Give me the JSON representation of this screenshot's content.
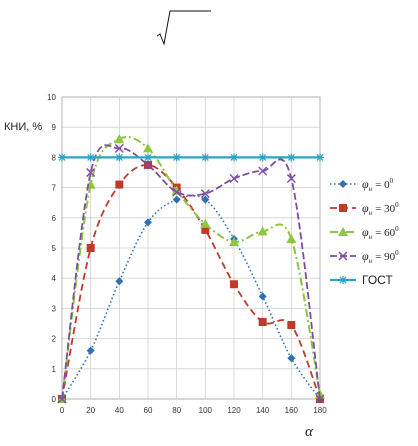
{
  "chart_data": {
    "type": "line",
    "ylabel": "КНИ, %",
    "xlabel": "α",
    "xlim": [
      0,
      180
    ],
    "ylim": [
      0,
      10
    ],
    "x_ticks": [
      "0",
      "20",
      "40",
      "60",
      "80",
      "100",
      "120",
      "140",
      "160",
      "180"
    ],
    "y_ticks": [
      "0",
      "1",
      "2",
      "3",
      "4",
      "5",
      "6",
      "7",
      "8",
      "9",
      "10"
    ],
    "grid": true,
    "legend_position": "right",
    "series": [
      {
        "name": "φн = 0°",
        "label_symbol": "φ",
        "label_sub": "н",
        "label_value": "= 0",
        "label_sup": "0",
        "color": "#2f6fb5",
        "marker": "diamond",
        "dash": "dotted",
        "x": [
          0,
          20,
          40,
          60,
          80,
          100,
          120,
          140,
          160,
          180
        ],
        "values": [
          0,
          1.6,
          3.9,
          5.85,
          6.6,
          6.6,
          5.3,
          3.4,
          1.35,
          0
        ]
      },
      {
        "name": "φн = 30°",
        "label_symbol": "φ",
        "label_sub": "н",
        "label_value": "= 30",
        "label_sup": "0",
        "color": "#c0392b",
        "marker": "square",
        "dash": "dashed",
        "x": [
          0,
          20,
          40,
          60,
          80,
          100,
          120,
          140,
          160,
          180
        ],
        "values": [
          0,
          5.0,
          7.1,
          7.75,
          7.0,
          5.6,
          3.8,
          2.55,
          2.45,
          0
        ]
      },
      {
        "name": "φн = 60°",
        "label_symbol": "φ",
        "label_sub": "н",
        "label_value": "= 60",
        "label_sup": "0",
        "color": "#8dc63f",
        "marker": "triangle",
        "dash": "dashdot",
        "x": [
          0,
          20,
          40,
          60,
          80,
          100,
          120,
          140,
          160,
          180
        ],
        "values": [
          0,
          7.1,
          8.6,
          8.3,
          6.9,
          5.8,
          5.2,
          5.55,
          5.3,
          0.15
        ]
      },
      {
        "name": "φн = 90°",
        "label_symbol": "φ",
        "label_sub": "н",
        "label_value": "= 90",
        "label_sup": "0",
        "color": "#7b4ea3",
        "marker": "x",
        "dash": "longdash",
        "x": [
          0,
          20,
          40,
          60,
          80,
          100,
          120,
          140,
          160,
          180
        ],
        "values": [
          0,
          7.5,
          8.3,
          7.75,
          6.85,
          6.8,
          7.3,
          7.55,
          7.3,
          0
        ]
      },
      {
        "name": "ГОСТ",
        "label_plain": "ГОСТ",
        "color": "#2aa3c9",
        "marker": "star",
        "dash": "solid",
        "x": [
          0,
          20,
          40,
          60,
          80,
          100,
          120,
          140,
          160,
          180
        ],
        "values": [
          8,
          8,
          8,
          8,
          8,
          8,
          8,
          8,
          8,
          8
        ]
      }
    ]
  }
}
